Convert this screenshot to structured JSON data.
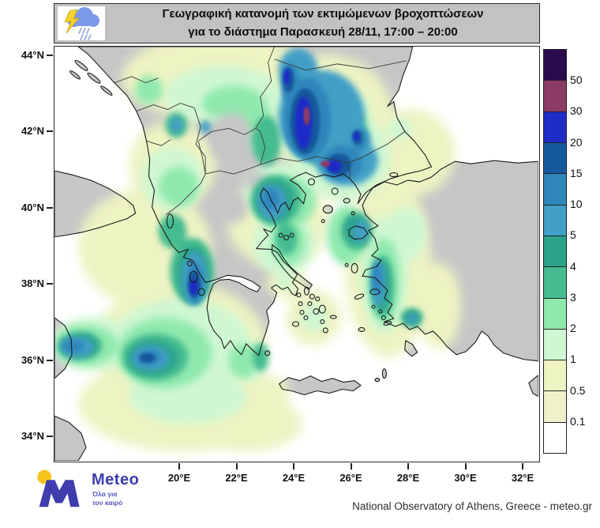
{
  "title": {
    "line1": "Γεωγραφική κατανομή των εκτιμώμενων βροχοπτώσεων",
    "line2": "για το διάστημα Παρασκευή 28/11, 17:00 – 20:00"
  },
  "header_icon": "storm-cloud-rain-lightning",
  "axes": {
    "lat_labels": [
      "44°N",
      "42°N",
      "40°N",
      "38°N",
      "36°N",
      "34°N"
    ],
    "lon_labels": [
      "20°E",
      "22°E",
      "24°E",
      "26°E",
      "28°E",
      "30°E",
      "32°E"
    ]
  },
  "scale": {
    "labels": [
      "50",
      "30",
      "20",
      "15",
      "10",
      "5",
      "4",
      "3",
      "2",
      "1",
      "0.5",
      "0.1"
    ],
    "colors": [
      "#2b0b4e",
      "#8c3a66",
      "#1f2cc8",
      "#15599c",
      "#2e86bb",
      "#429fc6",
      "#2ba38b",
      "#45bb90",
      "#8fe9ad",
      "#cff7d2",
      "#eef3c2",
      "#f0f1ca",
      "#ffffff"
    ]
  },
  "map": {
    "land_color": "#c6c6c6",
    "sea_color": "#ffffff",
    "coast_color": "#1a1a1a",
    "border_color": "#3a3a3a"
  },
  "logo": {
    "brand": "Meteo",
    "tagline_line1": "Όλα για",
    "tagline_line2": "τον καιρό",
    "brand_color": "#3d3dae",
    "dot_color": "#f6c51e"
  },
  "attribution": "National Observatory of Athens, Greece - meteo.gr"
}
